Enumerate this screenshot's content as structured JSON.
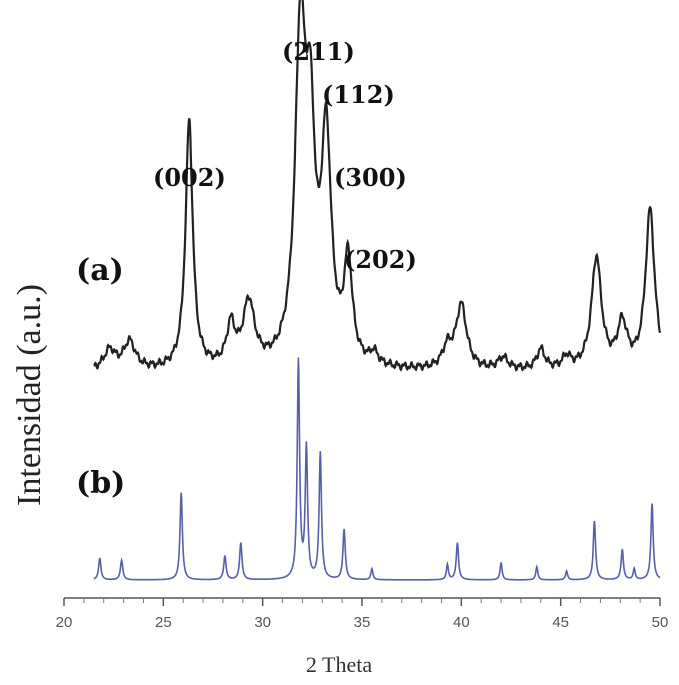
{
  "chart_data": {
    "type": "line",
    "xlabel": "2 Theta",
    "ylabel": "Intensidad (a.u.)",
    "xlim": [
      20,
      50
    ],
    "x_ticks": [
      20,
      25,
      30,
      35,
      40,
      45,
      50
    ],
    "series": [
      {
        "name": "(a)",
        "color": "#222222",
        "baseline": 0.05,
        "peaks": [
          {
            "x": 22.3,
            "h": 0.05,
            "w": 0.35
          },
          {
            "x": 23.3,
            "h": 0.07,
            "w": 0.35
          },
          {
            "x": 26.3,
            "h": 0.62,
            "w": 0.22
          },
          {
            "x": 28.4,
            "h": 0.1,
            "w": 0.25
          },
          {
            "x": 29.3,
            "h": 0.16,
            "w": 0.35
          },
          {
            "x": 31.9,
            "h": 0.8,
            "w": 0.32
          },
          {
            "x": 32.4,
            "h": 0.5,
            "w": 0.28
          },
          {
            "x": 33.2,
            "h": 0.55,
            "w": 0.3
          },
          {
            "x": 34.3,
            "h": 0.25,
            "w": 0.25
          },
          {
            "x": 35.6,
            "h": 0.03,
            "w": 0.25
          },
          {
            "x": 39.3,
            "h": 0.05,
            "w": 0.3
          },
          {
            "x": 40.0,
            "h": 0.16,
            "w": 0.32
          },
          {
            "x": 42.1,
            "h": 0.03,
            "w": 0.3
          },
          {
            "x": 44.0,
            "h": 0.05,
            "w": 0.25
          },
          {
            "x": 45.3,
            "h": 0.03,
            "w": 0.25
          },
          {
            "x": 46.8,
            "h": 0.28,
            "w": 0.3
          },
          {
            "x": 48.1,
            "h": 0.11,
            "w": 0.3
          },
          {
            "x": 49.5,
            "h": 0.4,
            "w": 0.28
          }
        ]
      },
      {
        "name": "(b)",
        "color": "#5560a8",
        "baseline": 0.0,
        "peaks": [
          {
            "x": 21.8,
            "h": 0.1,
            "w": 0.07
          },
          {
            "x": 22.9,
            "h": 0.09,
            "w": 0.07
          },
          {
            "x": 25.9,
            "h": 0.4,
            "w": 0.07
          },
          {
            "x": 28.1,
            "h": 0.11,
            "w": 0.07
          },
          {
            "x": 28.9,
            "h": 0.17,
            "w": 0.07
          },
          {
            "x": 31.8,
            "h": 1.0,
            "w": 0.07
          },
          {
            "x": 32.2,
            "h": 0.6,
            "w": 0.07
          },
          {
            "x": 32.9,
            "h": 0.58,
            "w": 0.07
          },
          {
            "x": 34.1,
            "h": 0.23,
            "w": 0.07
          },
          {
            "x": 35.5,
            "h": 0.05,
            "w": 0.06
          },
          {
            "x": 39.3,
            "h": 0.07,
            "w": 0.06
          },
          {
            "x": 39.8,
            "h": 0.17,
            "w": 0.07
          },
          {
            "x": 42.0,
            "h": 0.08,
            "w": 0.06
          },
          {
            "x": 43.8,
            "h": 0.06,
            "w": 0.06
          },
          {
            "x": 45.3,
            "h": 0.04,
            "w": 0.06
          },
          {
            "x": 46.7,
            "h": 0.27,
            "w": 0.07
          },
          {
            "x": 48.1,
            "h": 0.14,
            "w": 0.07
          },
          {
            "x": 48.7,
            "h": 0.05,
            "w": 0.06
          },
          {
            "x": 49.6,
            "h": 0.35,
            "w": 0.07
          }
        ]
      }
    ],
    "annotations": [
      {
        "text": "(211)",
        "x": 32.0,
        "series": "(a)"
      },
      {
        "text": "(112)",
        "x": 32.5,
        "series": "(a)"
      },
      {
        "text": "(002)",
        "x": 26.3,
        "series": "(a)"
      },
      {
        "text": "(300)",
        "x": 33.3,
        "series": "(a)"
      },
      {
        "text": "(202)",
        "x": 34.3,
        "series": "(a)"
      }
    ],
    "grid": false
  }
}
